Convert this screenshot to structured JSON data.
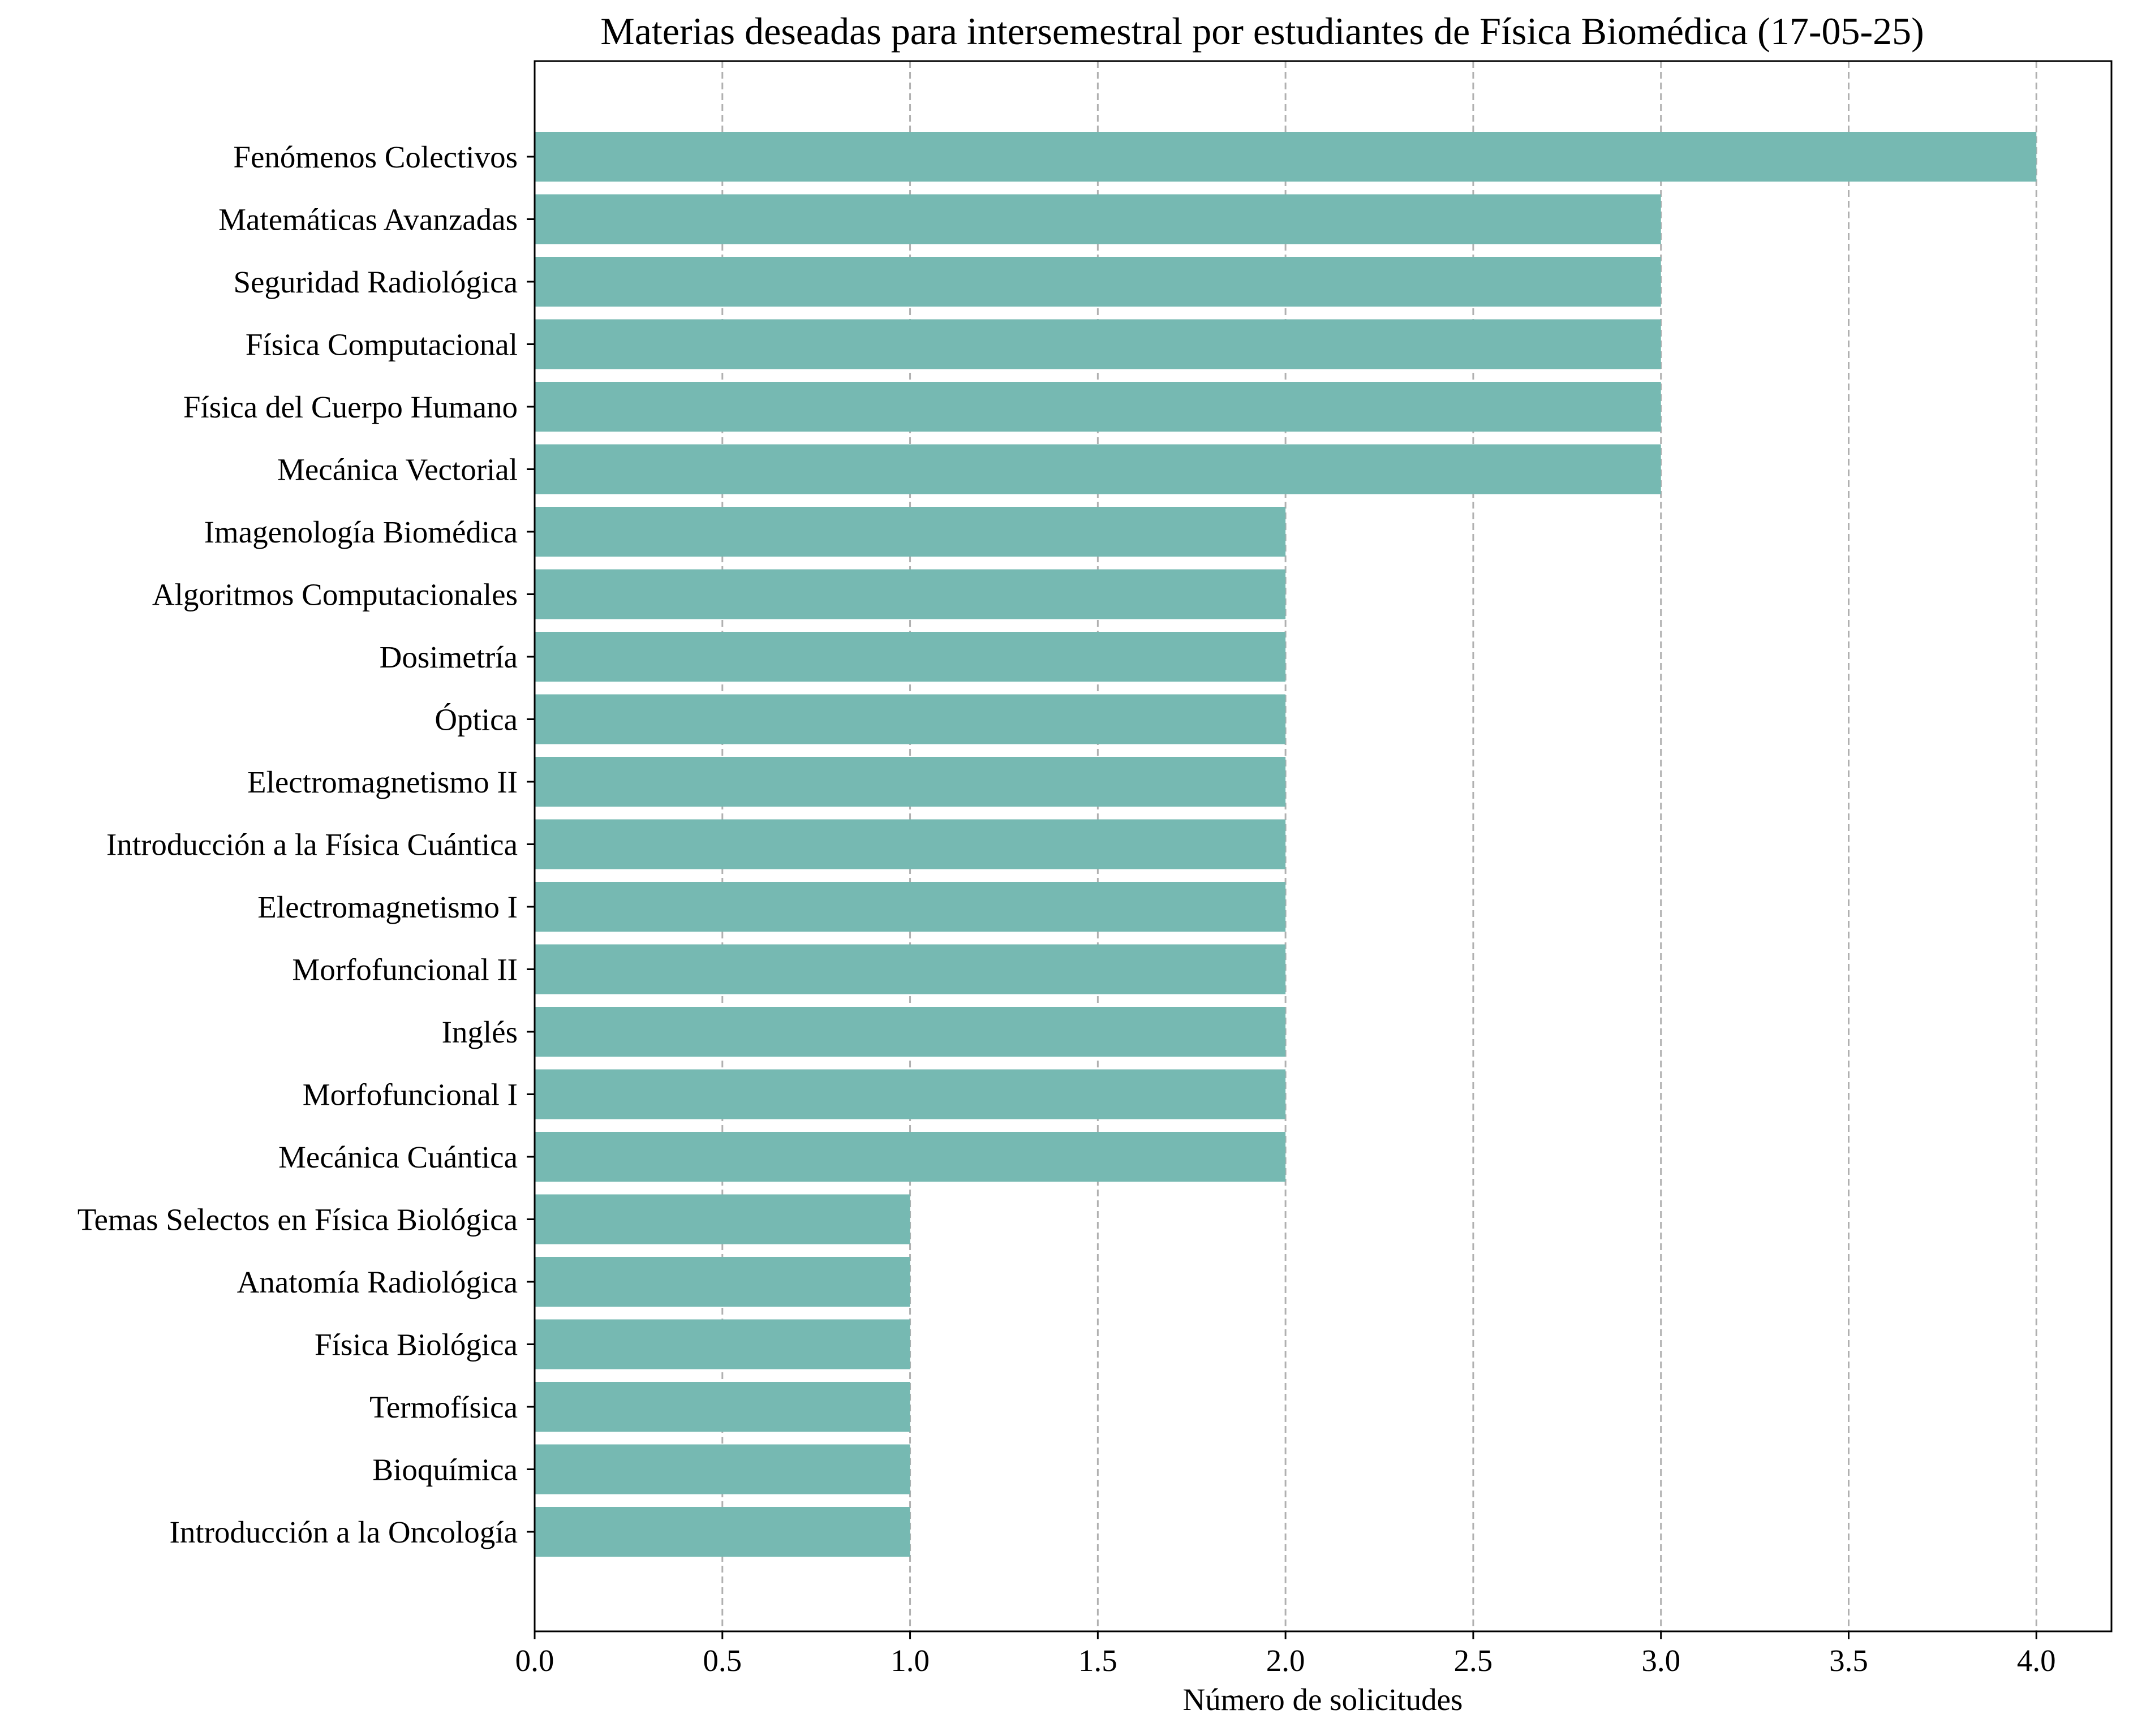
{
  "chart_data": {
    "type": "bar",
    "orientation": "horizontal",
    "title": "Materias deseadas para intersemestral por estudiantes de Física Biomédica (17-05-25)",
    "xlabel": "Número de solicitudes",
    "ylabel": "",
    "xlim": [
      0,
      4.2
    ],
    "x_ticks": [
      "0.0",
      "0.5",
      "1.0",
      "1.5",
      "2.0",
      "2.5",
      "3.0",
      "3.5",
      "4.0"
    ],
    "grid": "vertical dashed",
    "bar_color": "#76B9B2",
    "categories": [
      "Fenómenos Colectivos",
      "Matemáticas Avanzadas",
      "Seguridad Radiológica",
      "Física Computacional",
      "Física del Cuerpo Humano",
      "Mecánica Vectorial",
      "Imagenología Biomédica",
      "Algoritmos Computacionales",
      "Dosimetría",
      "Óptica",
      "Electromagnetismo II",
      "Introducción a la Física Cuántica",
      "Electromagnetismo I",
      "Morfofuncional II",
      "Inglés",
      "Morfofuncional I",
      "Mecánica Cuántica",
      "Temas Selectos en Física Biológica",
      "Anatomía Radiológica",
      "Física Biológica",
      "Termofísica",
      "Bioquímica",
      "Introducción a la Oncología"
    ],
    "values": [
      4,
      3,
      3,
      3,
      3,
      3,
      2,
      2,
      2,
      2,
      2,
      2,
      2,
      2,
      2,
      2,
      2,
      1,
      1,
      1,
      1,
      1,
      1
    ]
  }
}
